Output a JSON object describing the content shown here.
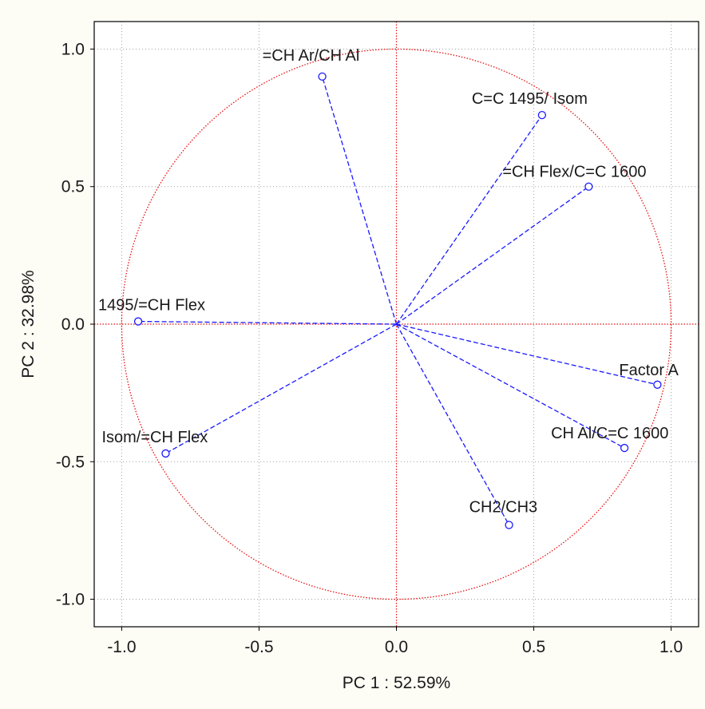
{
  "chart_data": {
    "type": "scatter",
    "title": "",
    "xlabel": "PC 1 : 52.59%",
    "ylabel": "PC 2 : 32.98%",
    "xlim": [
      -1.1,
      1.1
    ],
    "ylim": [
      -1.1,
      1.1
    ],
    "xticks": [
      "-1.0",
      "-0.5",
      "0.0",
      "0.5",
      "1.0"
    ],
    "yticks": [
      "-1.0",
      "-0.5",
      "0.0",
      "0.5",
      "1.0"
    ],
    "grid": true,
    "unit_circle": true,
    "points": [
      {
        "label": "=CH Ar/CH Al",
        "x": -0.27,
        "y": 0.9
      },
      {
        "label": "C=C 1495/ Isom",
        "x": 0.53,
        "y": 0.76
      },
      {
        "label": "=CH Flex/C=C 1600",
        "x": 0.7,
        "y": 0.5
      },
      {
        "label": "1495/=CH Flex",
        "x": -0.94,
        "y": 0.01
      },
      {
        "label": "Factor A",
        "x": 0.95,
        "y": -0.22
      },
      {
        "label": "CH Al/C=C 1600",
        "x": 0.83,
        "y": -0.45
      },
      {
        "label": "Isom/=CH Flex",
        "x": -0.84,
        "y": -0.47
      },
      {
        "label": "CH2/CH3",
        "x": 0.41,
        "y": -0.73
      }
    ]
  },
  "colors": {
    "background": "#fdfcf5",
    "plot_background": "#ffffff",
    "vector": "#1a1aff",
    "circle": "#e81010",
    "grid": "#a0a0a0",
    "text": "#1a1a1a"
  }
}
